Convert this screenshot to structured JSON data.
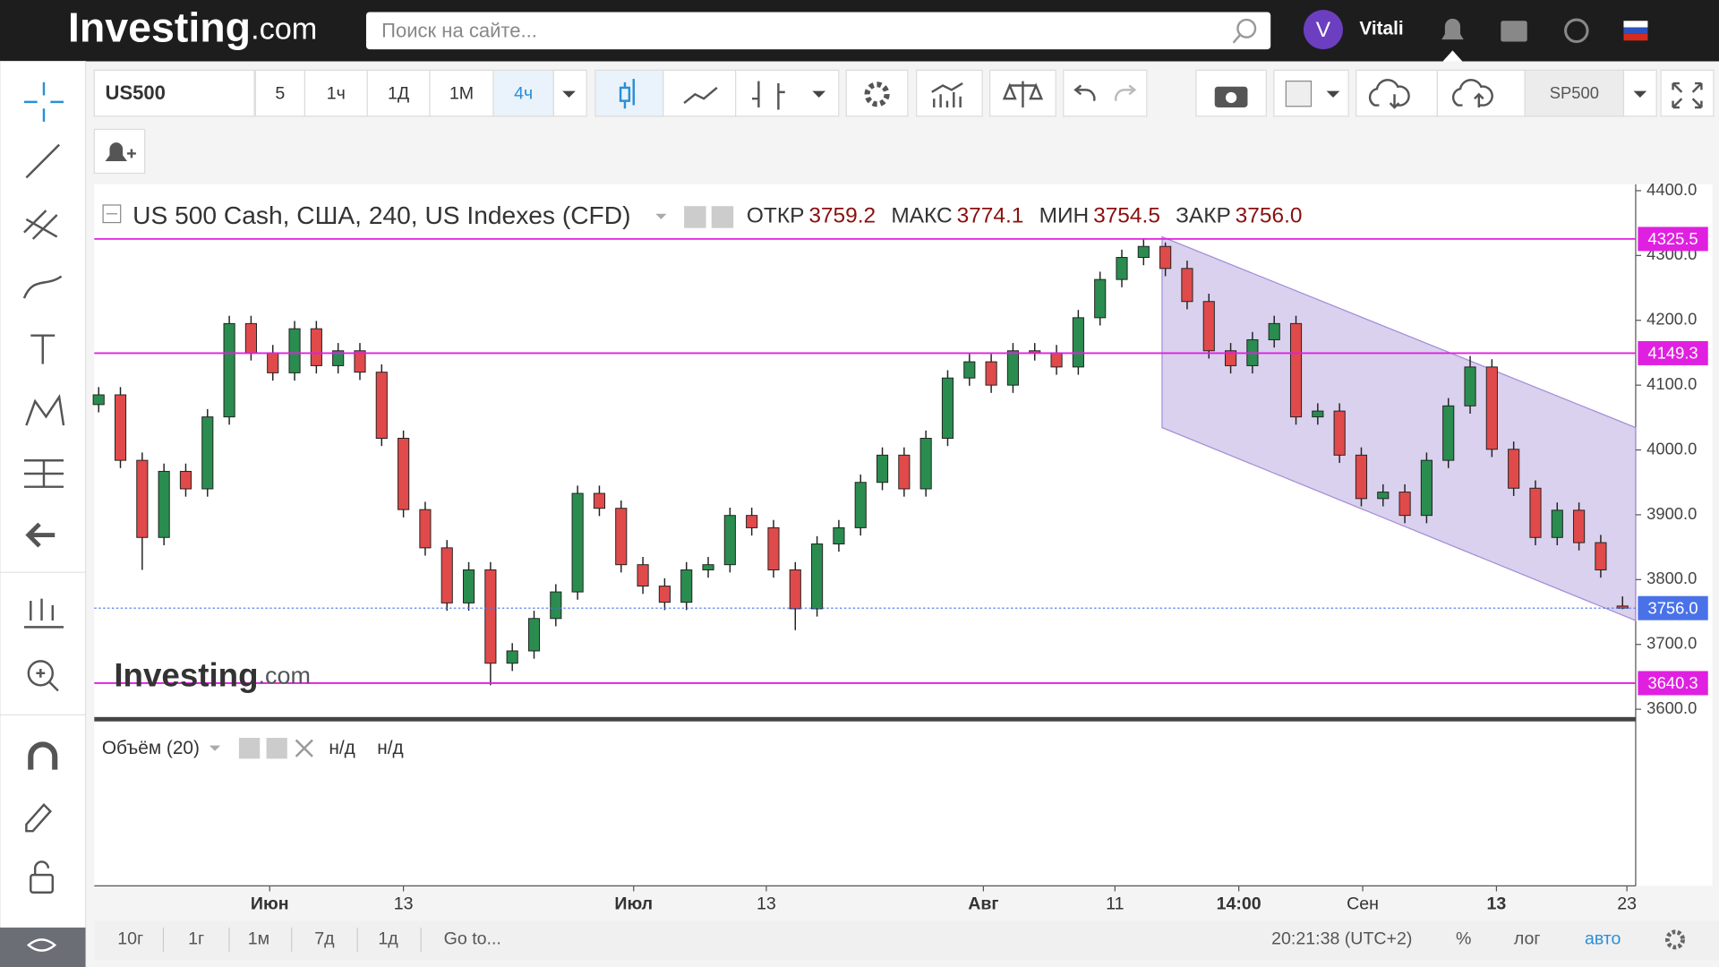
{
  "nav": {
    "logo": "Investing",
    "logo_suffix": ".com",
    "search_placeholder": "Поиск на сайте...",
    "avatar": "V",
    "user": "Vitali"
  },
  "toolbar": {
    "symbol": "US500",
    "intervals": [
      "5",
      "1ч",
      "1Д",
      "1М",
      "4ч"
    ],
    "symbol_right": "SP500"
  },
  "chart_data": {
    "type": "candlestick",
    "title": "US 500 Cash, США, 240, US Indexes (CFD)",
    "legend": {
      "open_label": "ОТКР",
      "open": "3759.2",
      "high_label": "МАКС",
      "high": "3774.1",
      "low_label": "МИН",
      "low": "3754.5",
      "close_label": "ЗАКР",
      "close": "3756.0"
    },
    "up_color": "#2a8c4f",
    "down_color": "#e04a4a",
    "open": [
      4070,
      4085,
      3984,
      3865,
      3967,
      3940,
      4051,
      4195,
      4150,
      4119,
      4187,
      4130,
      4153,
      4120,
      4018,
      3908,
      3849,
      3764,
      3815,
      3671,
      3690,
      3740,
      3781,
      3933,
      3910,
      3823,
      3790,
      3765,
      3815,
      3823,
      3899,
      3880,
      3815,
      3755,
      3855,
      3880,
      3950,
      3992,
      3940,
      4018,
      4111,
      4136,
      4100,
      4153,
      4150,
      4128,
      4204,
      4263,
      4297,
      4314,
      4280,
      4229,
      4153,
      4130,
      4170,
      4195,
      4051,
      4060,
      3992,
      3925,
      3935,
      3899,
      3984,
      4068,
      4128,
      4001,
      3941,
      3865,
      3907,
      3857,
      3759.2
    ],
    "high": [
      4097,
      4097,
      3996,
      3979,
      3979,
      4063,
      4207,
      4207,
      4162,
      4199,
      4199,
      4165,
      4165,
      4132,
      4030,
      3920,
      3861,
      3827,
      3827,
      3702,
      3752,
      3793,
      3945,
      3945,
      3922,
      3835,
      3802,
      3827,
      3835,
      3911,
      3911,
      3892,
      3827,
      3867,
      3892,
      3962,
      4004,
      4004,
      4030,
      4123,
      4148,
      4148,
      4165,
      4165,
      4162,
      4216,
      4275,
      4309,
      4325.5,
      4320,
      4292,
      4241,
      4165,
      4182,
      4207,
      4207,
      4072,
      4072,
      4004,
      3947,
      3947,
      3996,
      4080,
      4145,
      4140,
      4013,
      3953,
      3919,
      3919,
      3869,
      3774.1
    ],
    "low": [
      4058,
      3972,
      3815,
      3853,
      3928,
      3928,
      4039,
      4138,
      4107,
      4107,
      4118,
      4118,
      4108,
      4006,
      3896,
      3837,
      3752,
      3752,
      3637,
      3659,
      3678,
      3728,
      3769,
      3898,
      3811,
      3778,
      3753,
      3753,
      3803,
      3811,
      3868,
      3803,
      3722,
      3743,
      3843,
      3868,
      3938,
      3928,
      3928,
      4006,
      4099,
      4088,
      4088,
      4138,
      4116,
      4116,
      4192,
      4251,
      4285,
      4268,
      4217,
      4141,
      4118,
      4118,
      4158,
      4039,
      4039,
      3980,
      3913,
      3913,
      3887,
      3887,
      3972,
      4056,
      3989,
      3929,
      3853,
      3853,
      3845,
      3803,
      3754.5
    ],
    "close": [
      4085,
      3984,
      3865,
      3967,
      3940,
      4051,
      4195,
      4150,
      4119,
      4187,
      4130,
      4153,
      4120,
      4018,
      3908,
      3849,
      3764,
      3815,
      3671,
      3690,
      3740,
      3781,
      3933,
      3910,
      3823,
      3790,
      3765,
      3815,
      3823,
      3899,
      3880,
      3815,
      3755,
      3855,
      3880,
      3950,
      3992,
      3940,
      4018,
      4111,
      4136,
      4100,
      4153,
      4150,
      4128,
      4204,
      4263,
      4297,
      4314,
      4280,
      4229,
      4153,
      4130,
      4170,
      4195,
      4051,
      4060,
      3992,
      3925,
      3935,
      3899,
      3984,
      4068,
      4128,
      4001,
      3941,
      3865,
      3907,
      3857,
      3815,
      3756.0
    ],
    "ylim": [
      3588,
      4410
    ],
    "yticks": [
      {
        "value": 3600,
        "label": "3600.0"
      },
      {
        "value": 3700,
        "label": "3700.0"
      },
      {
        "value": 3800,
        "label": "3800.0"
      },
      {
        "value": 3900,
        "label": "3900.0"
      },
      {
        "value": 4000,
        "label": "4000.0"
      },
      {
        "value": 4100,
        "label": "4100.0"
      },
      {
        "value": 4200,
        "label": "4200.0"
      },
      {
        "value": 4300,
        "label": "4300.0"
      },
      {
        "value": 4400,
        "label": "4400.0"
      }
    ],
    "levels": [
      {
        "value": 4325.5,
        "color": "#e020e0"
      },
      {
        "value": 4149.3,
        "color": "#e020e0"
      },
      {
        "value": 3640.3,
        "color": "#e020e0"
      },
      {
        "value": 3756,
        "label": "3756.0",
        "color": "#4a72e8"
      }
    ],
    "xlabels": [
      "Июн",
      "13",
      "Июл",
      "13",
      "Авг",
      "11",
      "14:00",
      "Сен",
      "13",
      "23"
    ],
    "volume": {
      "title": "Объём (20)",
      "values": [
        "н/д",
        "н/д"
      ]
    },
    "watermark": {
      "logo": "Investing",
      "suffix": ".com"
    }
  },
  "footer": {
    "ranges": [
      "10г",
      "1г",
      "1м",
      "7д",
      "1д",
      "Go to..."
    ],
    "clock": "20:21:38 (UTC+2)",
    "options": [
      "%",
      "лог",
      "авто"
    ]
  }
}
